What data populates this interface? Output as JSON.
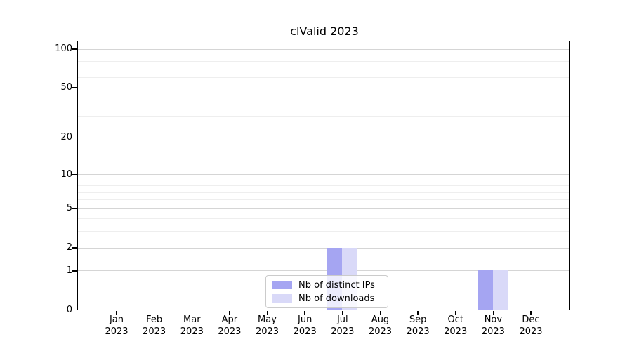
{
  "chart_data": {
    "type": "bar",
    "title": "clValid 2023",
    "categories": [
      "Jan 2023",
      "Feb 2023",
      "Mar 2023",
      "Apr 2023",
      "May 2023",
      "Jun 2023",
      "Jul 2023",
      "Aug 2023",
      "Sep 2023",
      "Oct 2023",
      "Nov 2023",
      "Dec 2023"
    ],
    "category_line1": [
      "Jan",
      "Feb",
      "Mar",
      "Apr",
      "May",
      "Jun",
      "Jul",
      "Aug",
      "Sep",
      "Oct",
      "Nov",
      "Dec"
    ],
    "category_line2": "2023",
    "series": [
      {
        "name": "Nb of distinct IPs",
        "color": "#a5a5f2",
        "values": [
          0,
          0,
          0,
          0,
          0,
          0,
          2,
          0,
          0,
          0,
          1,
          0
        ]
      },
      {
        "name": "Nb of downloads",
        "color": "#d9d9f8",
        "values": [
          0,
          0,
          0,
          0,
          0,
          0,
          2,
          0,
          0,
          0,
          1,
          0
        ]
      }
    ],
    "yscale": "log1p",
    "ylim": [
      0,
      115
    ],
    "yticks": [
      0,
      1,
      2,
      5,
      10,
      20,
      50,
      100
    ],
    "minor_gridlines": [
      3,
      4,
      6,
      7,
      8,
      9,
      30,
      40,
      60,
      70,
      80,
      90
    ],
    "grid": true,
    "legend_position": "lower center",
    "colors": {
      "major_grid": "#d5d5d5",
      "minor_grid": "#eeeeee",
      "axis": "#000000",
      "background": "#ffffff"
    }
  }
}
